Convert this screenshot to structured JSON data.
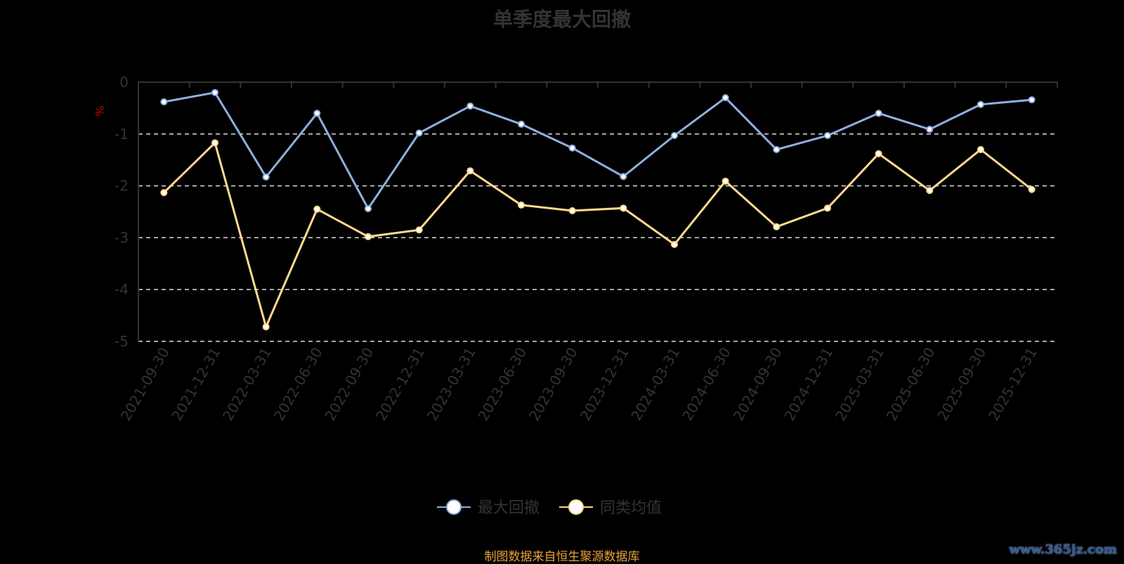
{
  "chart_data": {
    "type": "line",
    "title": "单季度最大回撤",
    "ylabel": "%",
    "ylim": [
      -5,
      0
    ],
    "yticks": [
      0,
      -1,
      -2,
      -3,
      -4,
      -5
    ],
    "grid": true,
    "legend_position": "bottom",
    "categories": [
      "2021-09-30",
      "2021-12-31",
      "2022-03-31",
      "2022-06-30",
      "2022-09-30",
      "2022-12-31",
      "2023-03-31",
      "2023-06-30",
      "2023-09-30",
      "2023-12-31",
      "2024-03-31",
      "2024-06-30",
      "2024-09-30",
      "2024-12-31",
      "2025-03-31",
      "2025-06-30",
      "2025-09-30",
      "2025-12-31"
    ],
    "series": [
      {
        "name": "最大回撤",
        "color": "#8eb0e0",
        "values": [
          -0.38,
          -0.2,
          -1.83,
          -0.6,
          -2.44,
          -0.98,
          -0.46,
          -0.81,
          -1.27,
          -1.82,
          -1.03,
          -0.3,
          -1.3,
          -1.03,
          -0.6,
          -0.91,
          -0.43,
          -0.34
        ]
      },
      {
        "name": "同类均值",
        "color": "#ffd98e",
        "values": [
          -2.13,
          -1.17,
          -4.72,
          -2.45,
          -2.98,
          -2.85,
          -1.71,
          -2.37,
          -2.48,
          -2.43,
          -3.13,
          -1.91,
          -2.79,
          -2.43,
          -1.38,
          -2.09,
          -1.3,
          -2.07
        ]
      }
    ]
  },
  "source": "制图数据来自恒生聚源数据库",
  "watermark": "www.365jz.com"
}
